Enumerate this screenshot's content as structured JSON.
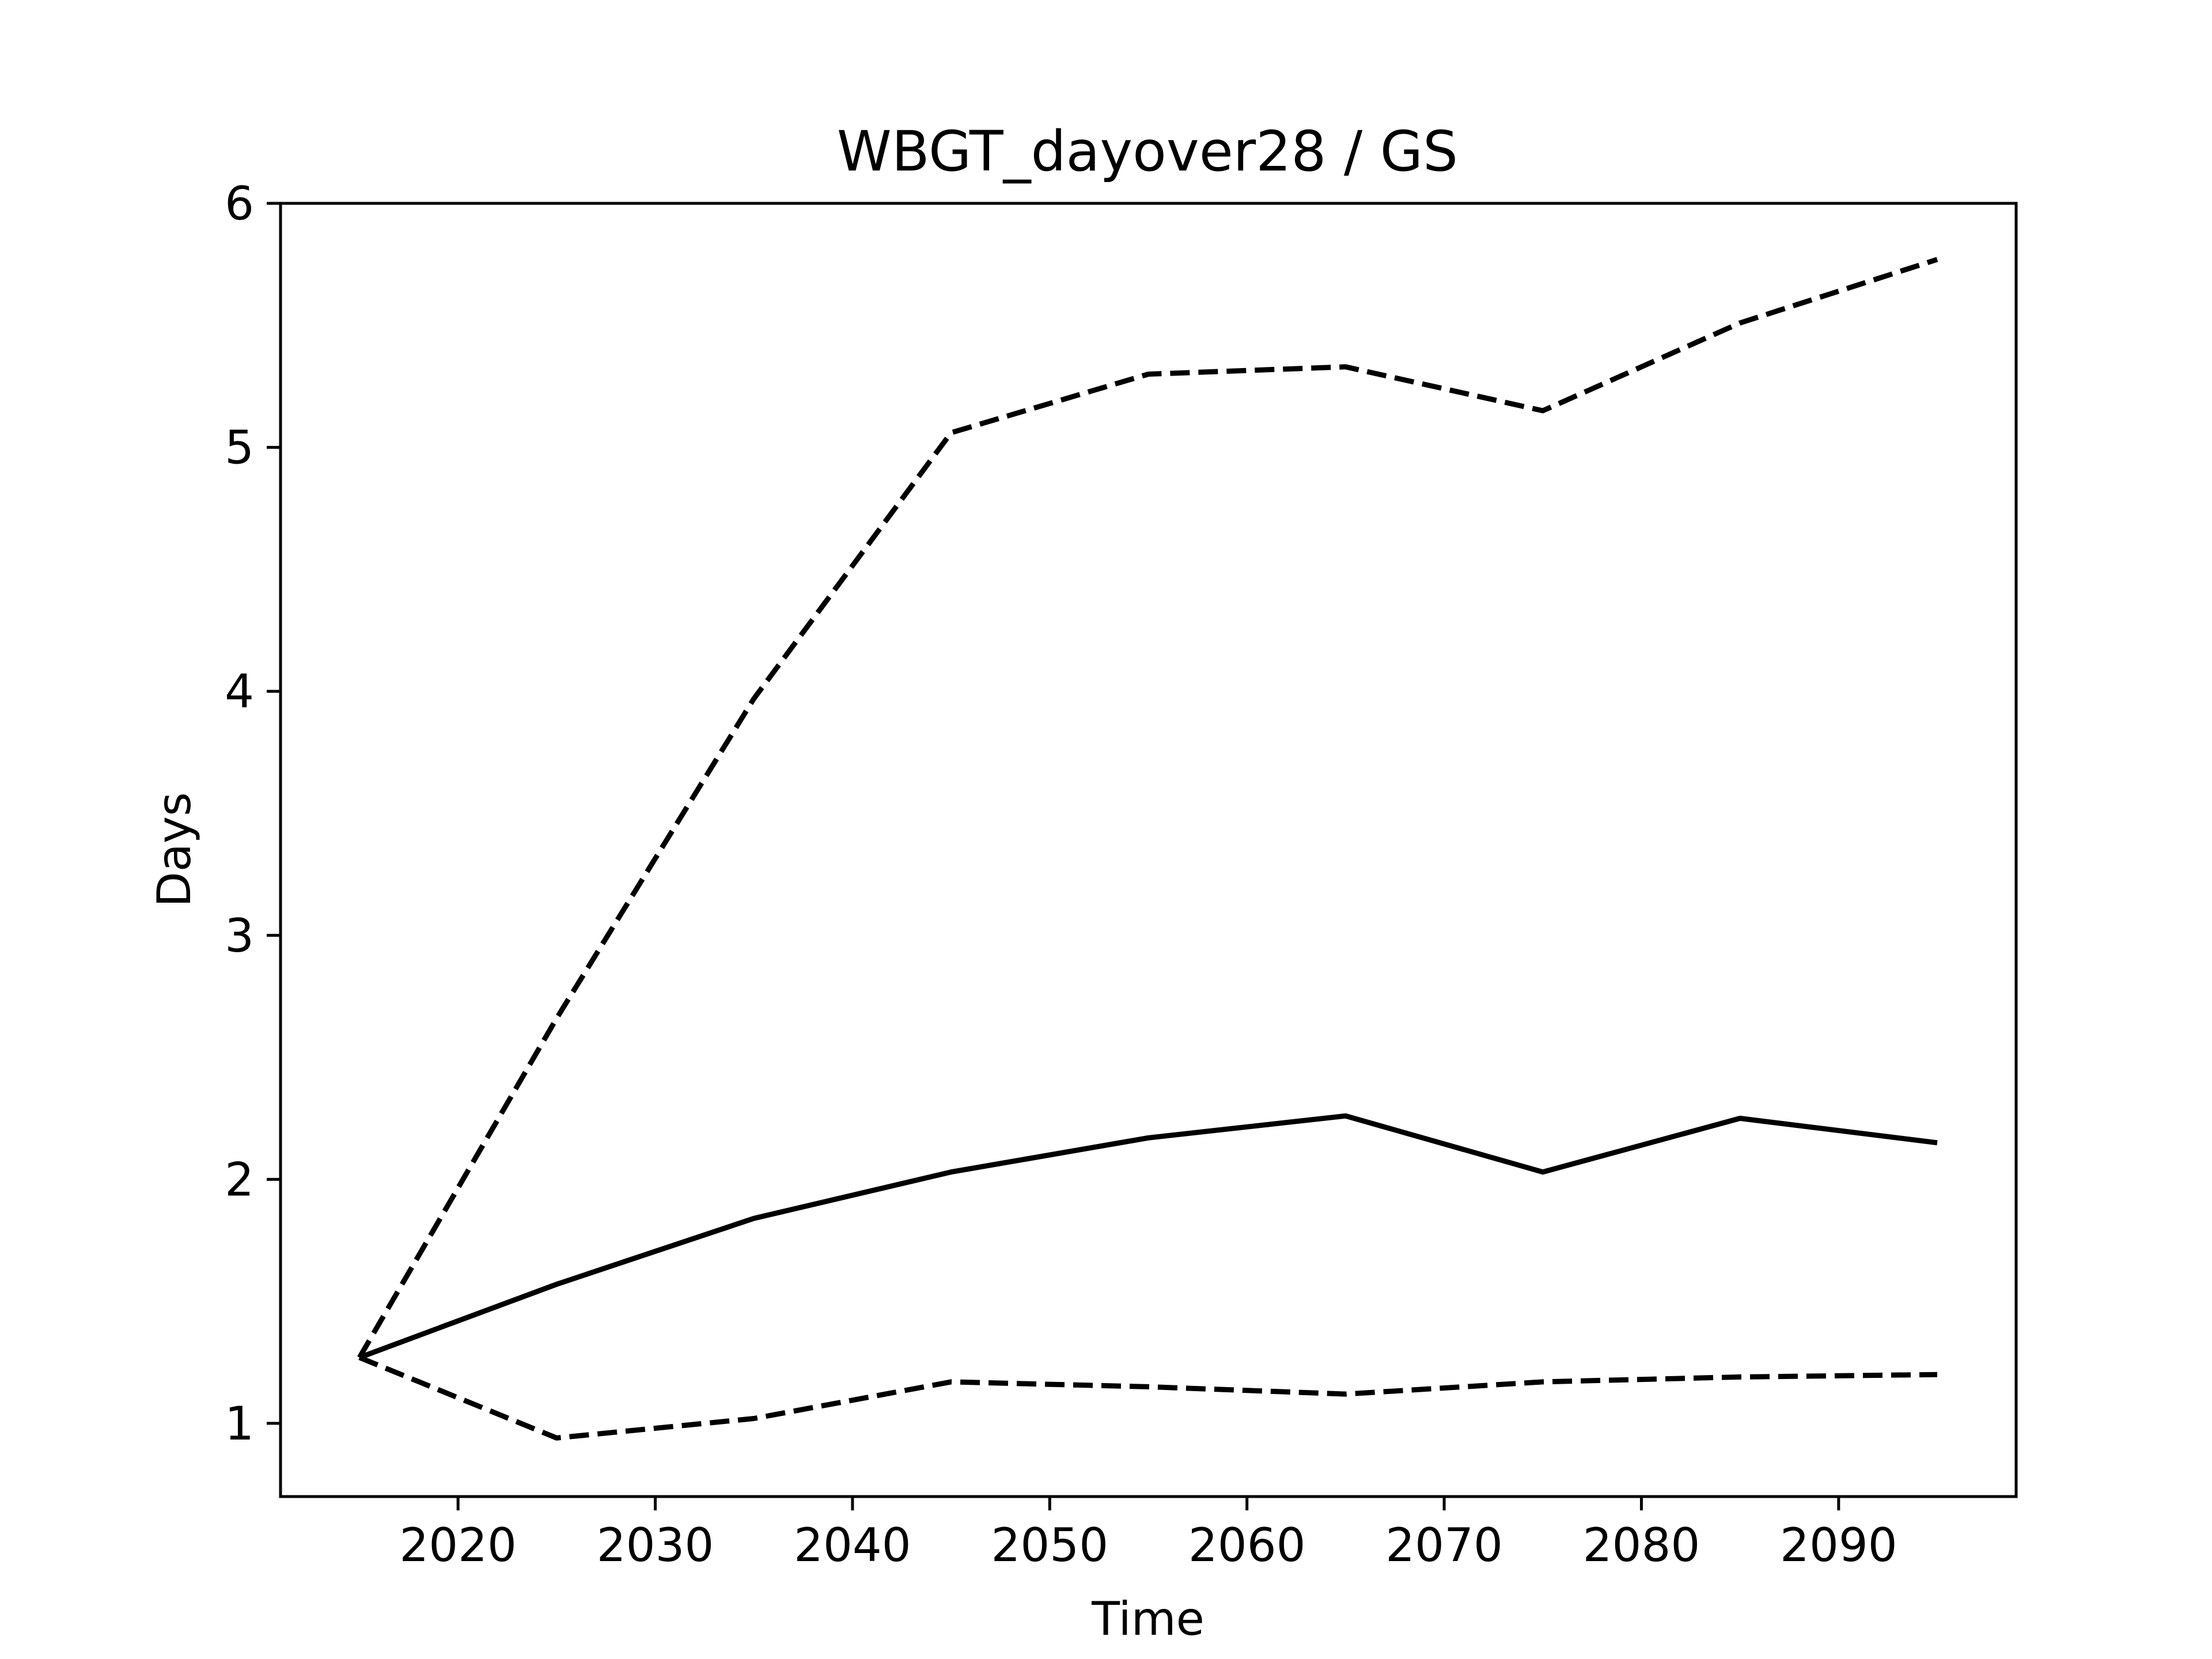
{
  "chart_data": {
    "type": "line",
    "title": "WBGT_dayover28 / GS",
    "xlabel": "Time",
    "ylabel": "Days",
    "xlim": [
      2011,
      2099
    ],
    "ylim": [
      0.7,
      6.0
    ],
    "xticks": [
      2020,
      2030,
      2040,
      2050,
      2060,
      2070,
      2080,
      2090
    ],
    "yticks": [
      1,
      2,
      3,
      4,
      5,
      6
    ],
    "grid": false,
    "x": [
      2015,
      2025,
      2035,
      2045,
      2055,
      2065,
      2075,
      2085,
      2095
    ],
    "series": [
      {
        "style": "dashed",
        "color": "#000000",
        "values": [
          1.27,
          2.66,
          3.97,
          5.06,
          5.3,
          5.33,
          5.15,
          5.51,
          5.77
        ]
      },
      {
        "style": "solid",
        "color": "#000000",
        "values": [
          1.27,
          1.57,
          1.84,
          2.03,
          2.17,
          2.26,
          2.03,
          2.25,
          2.15
        ]
      },
      {
        "style": "dashed",
        "color": "#000000",
        "values": [
          1.27,
          0.94,
          1.02,
          1.17,
          1.15,
          1.12,
          1.17,
          1.19,
          1.2
        ]
      }
    ]
  }
}
